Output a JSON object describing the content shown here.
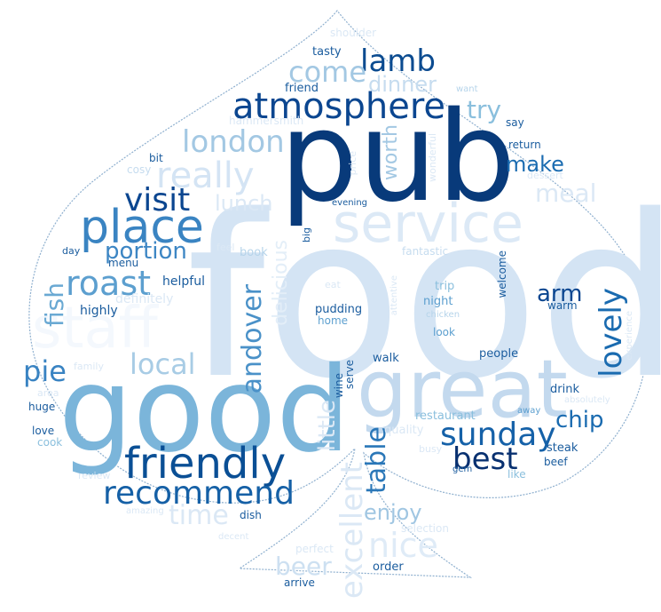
{
  "wordcloud": {
    "shape": "spade",
    "colormap": "Blues",
    "outline_color": "#8fb0cf",
    "words": [
      {
        "text": "food",
        "color": "#d4e4f4"
      },
      {
        "text": "pub",
        "color": "#083a7a"
      },
      {
        "text": "good",
        "color": "#7bb5da"
      },
      {
        "text": "great",
        "color": "#c3d9ee"
      },
      {
        "text": "staff",
        "color": "#f4f8fd"
      },
      {
        "text": "service",
        "color": "#dce9f6"
      },
      {
        "text": "friendly",
        "color": "#0a4f95"
      },
      {
        "text": "place",
        "color": "#3a84c2"
      },
      {
        "text": "atmosphere",
        "color": "#0b4690"
      },
      {
        "text": "sunday",
        "color": "#1561a8"
      },
      {
        "text": "recommend",
        "color": "#1560a6"
      },
      {
        "text": "really",
        "color": "#d4e4f4"
      },
      {
        "text": "london",
        "color": "#a3c8e3"
      },
      {
        "text": "visit",
        "color": "#0b4690"
      },
      {
        "text": "roast",
        "color": "#5c9fcf"
      },
      {
        "text": "lamb",
        "color": "#0b4b90"
      },
      {
        "text": "nice",
        "color": "#dfebf7"
      },
      {
        "text": "best",
        "color": "#083070"
      },
      {
        "text": "come",
        "color": "#a3c8e3"
      },
      {
        "text": "lovely",
        "color": "#1a6bb0"
      },
      {
        "text": "local",
        "color": "#a8cce5"
      },
      {
        "text": "portion",
        "color": "#3d86c4"
      },
      {
        "text": "pie",
        "color": "#3983c2"
      },
      {
        "text": "time",
        "color": "#dbe8f5"
      },
      {
        "text": "meal",
        "color": "#dbe8f5"
      },
      {
        "text": "make",
        "color": "#1b6cb1"
      },
      {
        "text": "dinner",
        "color": "#c6dcef"
      },
      {
        "text": "try",
        "color": "#8abfdd"
      },
      {
        "text": "excellent",
        "color": "#dbe8f5"
      },
      {
        "text": "beer",
        "color": "#cde0f1"
      },
      {
        "text": "enjoy",
        "color": "#a0c6e2"
      },
      {
        "text": "table",
        "color": "#2a77b8"
      },
      {
        "text": "andover",
        "color": "#4a91c8"
      },
      {
        "text": "fish",
        "color": "#6aa9d3"
      },
      {
        "text": "chip",
        "color": "#1a6bb0"
      },
      {
        "text": "arm",
        "color": "#0b4690"
      },
      {
        "text": "lunch",
        "color": "#dbe8f5"
      },
      {
        "text": "delicious",
        "color": "#e3eef8"
      },
      {
        "text": "worth",
        "color": "#a3c8e3"
      },
      {
        "text": "little",
        "color": "#dbe8f5"
      },
      {
        "text": "helpful",
        "color": "#1a5c9e"
      },
      {
        "text": "highly",
        "color": "#1a5c9e"
      },
      {
        "text": "definitely",
        "color": "#dbe8f5"
      },
      {
        "text": "menu",
        "color": "#1a5c9e"
      },
      {
        "text": "book",
        "color": "#b6d4ea"
      },
      {
        "text": "day",
        "color": "#1a5c9e"
      },
      {
        "text": "big",
        "color": "#1a5c9e"
      },
      {
        "text": "evening",
        "color": "#1a5c9e"
      },
      {
        "text": "friend",
        "color": "#1a5c9e"
      },
      {
        "text": "tasty",
        "color": "#1a5c9e"
      },
      {
        "text": "shoulder",
        "color": "#dbe8f5"
      },
      {
        "text": "hammersmith",
        "color": "#dbe8f5"
      },
      {
        "text": "bit",
        "color": "#1a5c9e"
      },
      {
        "text": "cosy",
        "color": "#c6dcef"
      },
      {
        "text": "price",
        "color": "#dbe8f5"
      },
      {
        "text": "wonderful",
        "color": "#dbe8f5"
      },
      {
        "text": "dessert",
        "color": "#dbe8f5"
      },
      {
        "text": "return",
        "color": "#1a5c9e"
      },
      {
        "text": "say",
        "color": "#1a5c9e"
      },
      {
        "text": "want",
        "color": "#b6d4ea"
      },
      {
        "text": "fantastic",
        "color": "#c6dcef"
      },
      {
        "text": "eat",
        "color": "#dbe8f5"
      },
      {
        "text": "feel",
        "color": "#dbe8f5"
      },
      {
        "text": "trip",
        "color": "#8abfdd"
      },
      {
        "text": "night",
        "color": "#5c9fcf"
      },
      {
        "text": "chicken",
        "color": "#b6d4ea"
      },
      {
        "text": "look",
        "color": "#5c9fcf"
      },
      {
        "text": "attentive",
        "color": "#dbe8f5"
      },
      {
        "text": "welcome",
        "color": "#1a5c9e"
      },
      {
        "text": "warm",
        "color": "#1a5c9e"
      },
      {
        "text": "pudding",
        "color": "#1a5c9e"
      },
      {
        "text": "home",
        "color": "#5c9fcf"
      },
      {
        "text": "experience",
        "color": "#dbe8f5"
      },
      {
        "text": "people",
        "color": "#1a5c9e"
      },
      {
        "text": "walk",
        "color": "#1a5c9e"
      },
      {
        "text": "wine",
        "color": "#1a5c9e"
      },
      {
        "text": "serve",
        "color": "#1a5c9e"
      },
      {
        "text": "drink",
        "color": "#1a5c9e"
      },
      {
        "text": "absolutely",
        "color": "#dbe8f5"
      },
      {
        "text": "restaurant",
        "color": "#8abfdd"
      },
      {
        "text": "away",
        "color": "#5c9fcf"
      },
      {
        "text": "quality",
        "color": "#dbe8f5"
      },
      {
        "text": "steak",
        "color": "#1a5c9e"
      },
      {
        "text": "beef",
        "color": "#1a5c9e"
      },
      {
        "text": "busy",
        "color": "#dbe8f5"
      },
      {
        "text": "gem",
        "color": "#1a5c9e"
      },
      {
        "text": "like",
        "color": "#8abfdd"
      },
      {
        "text": "family",
        "color": "#dbe8f5"
      },
      {
        "text": "area",
        "color": "#dbe8f5"
      },
      {
        "text": "huge",
        "color": "#1a5c9e"
      },
      {
        "text": "love",
        "color": "#1a5c9e"
      },
      {
        "text": "cook",
        "color": "#8abfdd"
      },
      {
        "text": "review",
        "color": "#dbe8f5"
      },
      {
        "text": "amazing",
        "color": "#dbe8f5"
      },
      {
        "text": "dish",
        "color": "#1a5c9e"
      },
      {
        "text": "perfect",
        "color": "#dbe8f5"
      },
      {
        "text": "selection",
        "color": "#dbe8f5"
      },
      {
        "text": "order",
        "color": "#1a5c9e"
      },
      {
        "text": "arrive",
        "color": "#1a5c9e"
      },
      {
        "text": "decent",
        "color": "#dbe8f5"
      }
    ]
  }
}
